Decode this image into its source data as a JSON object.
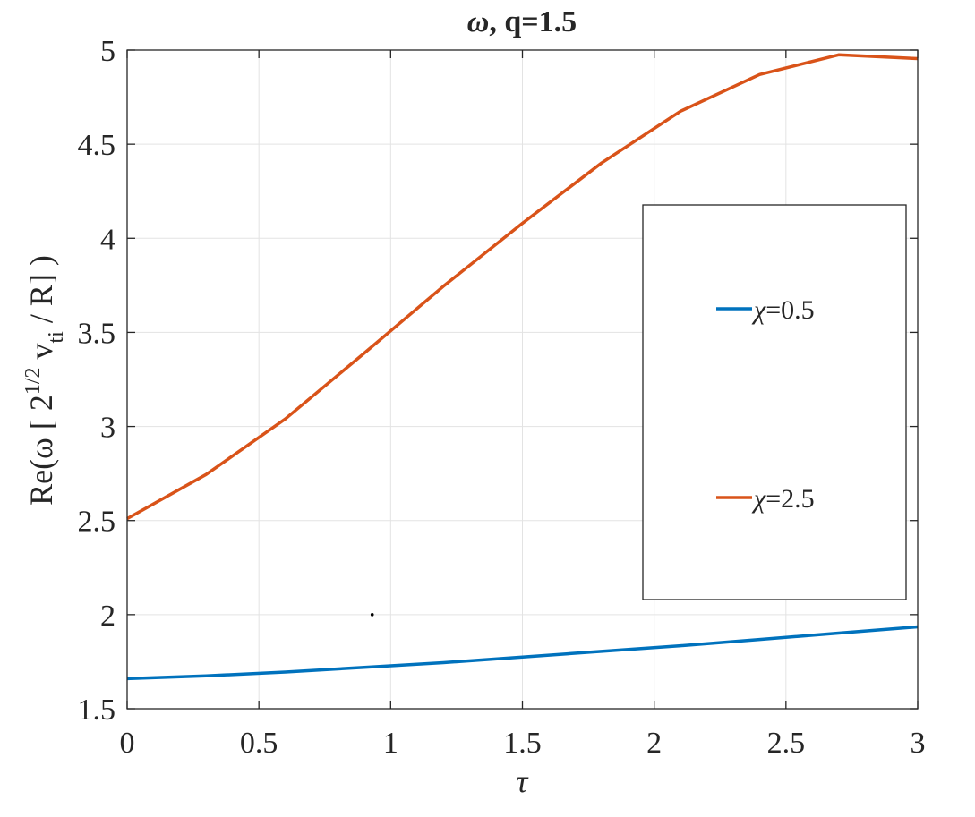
{
  "chart_data": {
    "type": "line",
    "title_symbol": "ω",
    "title_rest": ", q=1.5",
    "xlabel": "τ",
    "ylabel": "Re(ω [ 2",
    "ylabel_sup": "1/2",
    "ylabel_mid": " v",
    "ylabel_sub": "ti",
    "ylabel_end": " / R] )",
    "xlim": [
      0,
      3
    ],
    "ylim": [
      1.5,
      5
    ],
    "xticks": [
      0,
      0.5,
      1,
      1.5,
      2,
      2.5,
      3
    ],
    "xtick_labels": [
      "0",
      "0.5",
      "1",
      "1.5",
      "2",
      "2.5",
      "3"
    ],
    "yticks": [
      1.5,
      2,
      2.5,
      3,
      3.5,
      4,
      4.5,
      5
    ],
    "ytick_labels": [
      "1.5",
      "2",
      "2.5",
      "3",
      "3.5",
      "4",
      "4.5",
      "5"
    ],
    "grid": true,
    "legend_placement": "right",
    "series": [
      {
        "name": "χ=0.5",
        "legend_symbol": "χ",
        "legend_value": "=0.5",
        "color": "#0072BD",
        "x": [
          0,
          0.3,
          0.6,
          0.9,
          1.2,
          1.5,
          1.8,
          2.1,
          2.4,
          2.7,
          3.0
        ],
        "y": [
          1.66,
          1.675,
          1.695,
          1.72,
          1.745,
          1.775,
          1.805,
          1.835,
          1.868,
          1.902,
          1.935
        ]
      },
      {
        "name": "χ=2.5",
        "legend_symbol": "χ",
        "legend_value": "=2.5",
        "color": "#D95319",
        "x": [
          0,
          0.3,
          0.6,
          0.9,
          1.2,
          1.5,
          1.8,
          2.1,
          2.4,
          2.7,
          3.0
        ],
        "y": [
          2.51,
          2.745,
          3.04,
          3.39,
          3.745,
          4.08,
          4.4,
          4.675,
          4.87,
          4.975,
          4.955
        ]
      }
    ],
    "stray_point": {
      "x": 0.93,
      "y": 2.0,
      "color": "#000000"
    }
  }
}
